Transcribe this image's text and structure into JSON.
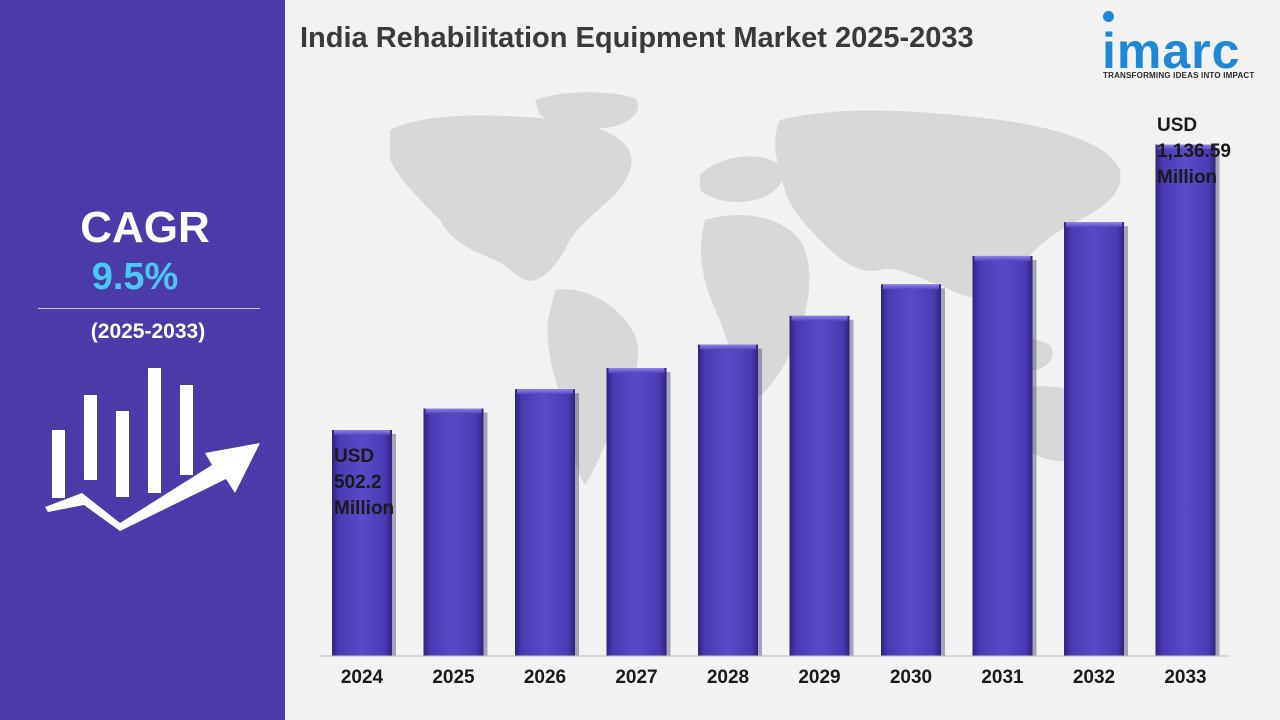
{
  "sidebar": {
    "cagr_label": "CAGR",
    "cagr_value": "9.5%",
    "cagr_period": "(2025-2033)",
    "icon": "growth-chart-arrow-icon"
  },
  "header": {
    "title": "India Rehabilitation Equipment Market 2025-2033"
  },
  "logo": {
    "wordmark": "imarc",
    "tagline": "TRANSFORMING IDEAS INTO IMPACT"
  },
  "callouts": {
    "first": [
      "USD",
      "502.2",
      "Million"
    ],
    "last": [
      "USD",
      "1,136.59",
      "Million"
    ]
  },
  "colors": {
    "sidebar": "#4b3ba8",
    "bar": "#5545bf",
    "bar_dark": "#2e2380",
    "accent": "#48c8f2",
    "logo": "#1e88d6",
    "background": "#f2f2f2"
  },
  "chart_data": {
    "type": "bar",
    "title": "India Rehabilitation Equipment Market 2025-2033",
    "xlabel": "",
    "ylabel": "",
    "unit": "USD Million",
    "categories": [
      "2024",
      "2025",
      "2026",
      "2027",
      "2028",
      "2029",
      "2030",
      "2031",
      "2032",
      "2033"
    ],
    "values": [
      502.2,
      550,
      593,
      640,
      692,
      756,
      826,
      889,
      964,
      1136.59
    ],
    "ylim": [
      0,
      1200
    ],
    "grid": false,
    "legend": "none"
  }
}
